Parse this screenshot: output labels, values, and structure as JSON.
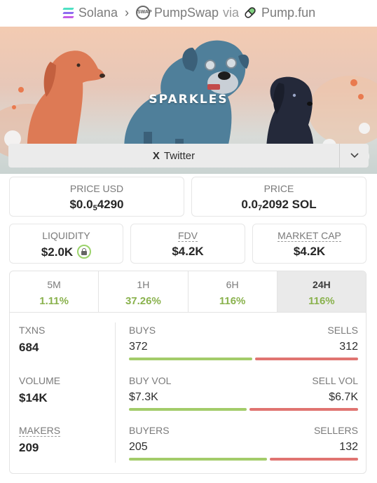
{
  "breadcrumb": {
    "chain": "Solana",
    "dex": "PumpSwap",
    "via": "via",
    "launchpad": "Pump.fun"
  },
  "banner": {
    "title": "SPARKLES"
  },
  "social": {
    "twitter_label": "Twitter",
    "x_glyph": "X"
  },
  "price": {
    "usd_label": "PRICE USD",
    "usd_prefix": "$0.0",
    "usd_sub": "5",
    "usd_rest": "4290",
    "native_label": "PRICE",
    "native_prefix": "0.0",
    "native_sub": "7",
    "native_rest": "2092 SOL"
  },
  "metrics": {
    "liquidity_label": "LIQUIDITY",
    "liquidity_value": "$2.0K",
    "fdv_label": "FDV",
    "fdv_value": "$4.2K",
    "mcap_label": "MARKET CAP",
    "mcap_value": "$4.2K"
  },
  "timeframes": [
    {
      "label": "5M",
      "change": "1.11%"
    },
    {
      "label": "1H",
      "change": "37.26%"
    },
    {
      "label": "6H",
      "change": "116%"
    },
    {
      "label": "24H",
      "change": "116%"
    }
  ],
  "active_timeframe": "24H",
  "stats": {
    "txns_label": "TXNS",
    "txns_value": "684",
    "volume_label": "VOLUME",
    "volume_value": "$14K",
    "makers_label": "MAKERS",
    "makers_value": "209",
    "buys_label": "BUYS",
    "buys_value": "372",
    "sells_label": "SELLS",
    "sells_value": "312",
    "buy_vol_label": "BUY VOL",
    "buy_vol_value": "$7.3K",
    "sell_vol_label": "SELL VOL",
    "sell_vol_value": "$6.7K",
    "buyers_label": "BUYERS",
    "buyers_value": "205",
    "sellers_label": "SELLERS",
    "sellers_value": "132"
  },
  "ratios": {
    "buys_fraction": 0.544,
    "buy_vol_fraction": 0.521,
    "buyers_fraction": 0.608
  },
  "colors": {
    "positive": "#8ab24e",
    "buy_bar": "#a3cc6a",
    "sell_bar": "#e07471"
  }
}
